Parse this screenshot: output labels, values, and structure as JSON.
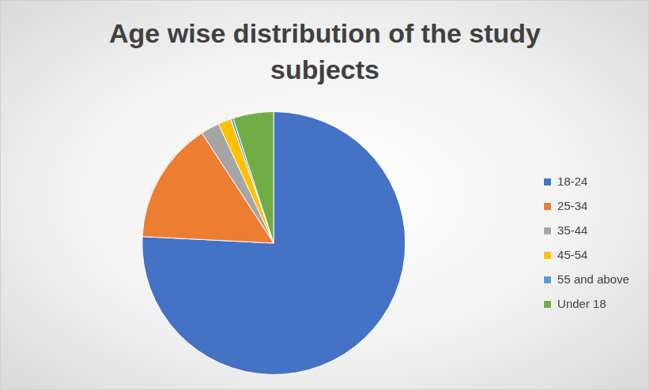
{
  "chart_data": {
    "type": "pie",
    "title": "Age wise distribution of the study subjects",
    "categories": [
      "18-24",
      "25-34",
      "35-44",
      "45-54",
      "55 and above",
      "Under 18"
    ],
    "values": [
      75.8,
      15,
      2.3,
      1.6,
      0.3,
      5
    ],
    "colors": [
      "#4472c4",
      "#ed7d31",
      "#a5a5a5",
      "#ffc000",
      "#5b9bd5",
      "#70ad47"
    ],
    "legend": "right"
  }
}
